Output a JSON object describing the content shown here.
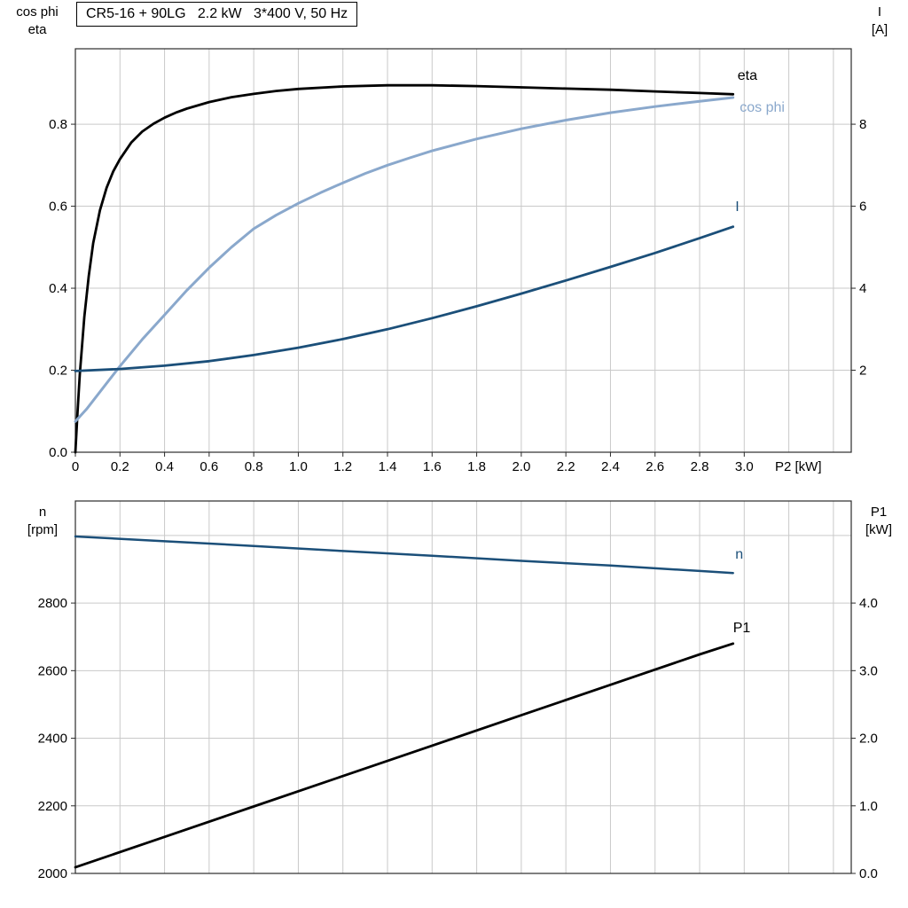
{
  "colors": {
    "grid": "#c9c9c9",
    "frame": "#2b2b2b",
    "black": "#000000",
    "light_blue": "#8aa8cc",
    "dark_blue": "#1b4f79"
  },
  "chart_data": [
    {
      "type": "line",
      "title": "CR5-16 + 90LG   2.2 kW   3*400 V, 50 Hz",
      "grid": true,
      "legend_position": "inline-right",
      "x_axis": {
        "label": "P2 [kW]",
        "min": 0,
        "max": 3.48,
        "grid_step": 0.2,
        "ticks": [
          0,
          0.2,
          0.4,
          0.6,
          0.8,
          1.0,
          1.2,
          1.4,
          1.6,
          1.8,
          2.0,
          2.2,
          2.4,
          2.6,
          2.8,
          3.0
        ],
        "tick_labels": [
          "0",
          "0.2",
          "0.4",
          "0.6",
          "0.8",
          "1.0",
          "1.2",
          "1.4",
          "1.6",
          "1.8",
          "2.0",
          "2.2",
          "2.4",
          "2.6",
          "2.8",
          "3.0"
        ]
      },
      "y_left": {
        "line1": "cos phi",
        "line2": "eta",
        "min": 0,
        "max": 0.984,
        "grid_step": 0.2,
        "ticks": [
          0.0,
          0.2,
          0.4,
          0.6,
          0.8
        ],
        "tick_labels": [
          "0.0",
          "0.2",
          "0.4",
          "0.6",
          "0.8"
        ]
      },
      "y_right": {
        "line1": "I",
        "line2": "[A]",
        "min": 0,
        "max": 9.84,
        "ticks": [
          2,
          4,
          6,
          8
        ],
        "tick_labels": [
          "2",
          "4",
          "6",
          "8"
        ]
      },
      "series": [
        {
          "id": "eta",
          "name": "eta",
          "axis": "left",
          "color": "#000000",
          "width": 2.8,
          "label_x": 2.97,
          "label_y": 0.908,
          "x": [
            0,
            0.01,
            0.02,
            0.04,
            0.06,
            0.08,
            0.11,
            0.14,
            0.17,
            0.2,
            0.25,
            0.3,
            0.35,
            0.4,
            0.45,
            0.5,
            0.6,
            0.7,
            0.8,
            0.9,
            1.0,
            1.2,
            1.4,
            1.6,
            1.8,
            2.0,
            2.2,
            2.4,
            2.6,
            2.8,
            2.95
          ],
          "y": [
            0,
            0.1,
            0.19,
            0.33,
            0.43,
            0.51,
            0.59,
            0.645,
            0.685,
            0.715,
            0.755,
            0.782,
            0.801,
            0.816,
            0.828,
            0.838,
            0.854,
            0.866,
            0.874,
            0.881,
            0.886,
            0.892,
            0.895,
            0.895,
            0.893,
            0.89,
            0.887,
            0.884,
            0.88,
            0.876,
            0.873
          ]
        },
        {
          "id": "cosphi",
          "name": "cos phi",
          "axis": "left",
          "color": "#8aa8cc",
          "width": 3,
          "label_x": 2.98,
          "label_y": 0.83,
          "x": [
            0,
            0.05,
            0.1,
            0.15,
            0.2,
            0.3,
            0.4,
            0.5,
            0.6,
            0.7,
            0.8,
            0.9,
            1.0,
            1.1,
            1.2,
            1.3,
            1.4,
            1.5,
            1.6,
            1.8,
            2.0,
            2.2,
            2.4,
            2.6,
            2.8,
            2.95
          ],
          "y": [
            0.075,
            0.105,
            0.14,
            0.175,
            0.21,
            0.275,
            0.335,
            0.395,
            0.45,
            0.5,
            0.545,
            0.578,
            0.607,
            0.633,
            0.657,
            0.68,
            0.7,
            0.718,
            0.735,
            0.764,
            0.789,
            0.81,
            0.828,
            0.843,
            0.856,
            0.865
          ]
        },
        {
          "id": "current",
          "name": "I",
          "axis": "right",
          "color": "#1b4f79",
          "width": 2.8,
          "label_x": 2.96,
          "label_y": 5.88,
          "x": [
            0,
            0.2,
            0.4,
            0.6,
            0.8,
            1.0,
            1.2,
            1.4,
            1.6,
            1.8,
            2.0,
            2.2,
            2.4,
            2.6,
            2.8,
            2.95
          ],
          "y": [
            1.98,
            2.03,
            2.11,
            2.22,
            2.37,
            2.55,
            2.76,
            3.0,
            3.27,
            3.56,
            3.87,
            4.19,
            4.52,
            4.86,
            5.22,
            5.5
          ]
        }
      ]
    },
    {
      "type": "line",
      "title": "",
      "grid": true,
      "legend_position": "inline-right",
      "x_axis": {
        "label": "",
        "min": 0,
        "max": 3.48,
        "grid_step": 0.2,
        "ticks": [],
        "tick_labels": []
      },
      "y_left": {
        "line1": "n",
        "line2": "[rpm]",
        "min": 2000,
        "max": 3102,
        "grid_step": 200,
        "ticks": [
          2000,
          2200,
          2400,
          2600,
          2800
        ],
        "tick_labels": [
          "2000",
          "2200",
          "2400",
          "2600",
          "2800"
        ]
      },
      "y_right": {
        "line1": "P1",
        "line2": "[kW]",
        "min": 0,
        "max": 5.51,
        "ticks": [
          0,
          1,
          2,
          3,
          4
        ],
        "tick_labels": [
          "0.0",
          "1.0",
          "2.0",
          "3.0",
          "4.0"
        ]
      },
      "series": [
        {
          "id": "speed",
          "name": "n",
          "axis": "left",
          "color": "#1b4f79",
          "width": 2.5,
          "label_x": 2.96,
          "label_y": 2931,
          "x": [
            0,
            0.4,
            0.8,
            1.2,
            1.6,
            2.0,
            2.4,
            2.8,
            2.95
          ],
          "y": [
            2997,
            2983,
            2969,
            2954,
            2940,
            2925,
            2911,
            2895,
            2889
          ]
        },
        {
          "id": "p1",
          "name": "P1",
          "axis": "right",
          "color": "#000000",
          "width": 2.8,
          "label_x": 2.95,
          "label_y": 3.57,
          "x": [
            0,
            0.4,
            0.8,
            1.2,
            1.6,
            2.0,
            2.4,
            2.8,
            2.95
          ],
          "y": [
            0.09,
            0.54,
            0.99,
            1.44,
            1.89,
            2.34,
            2.79,
            3.24,
            3.4
          ]
        }
      ]
    }
  ]
}
